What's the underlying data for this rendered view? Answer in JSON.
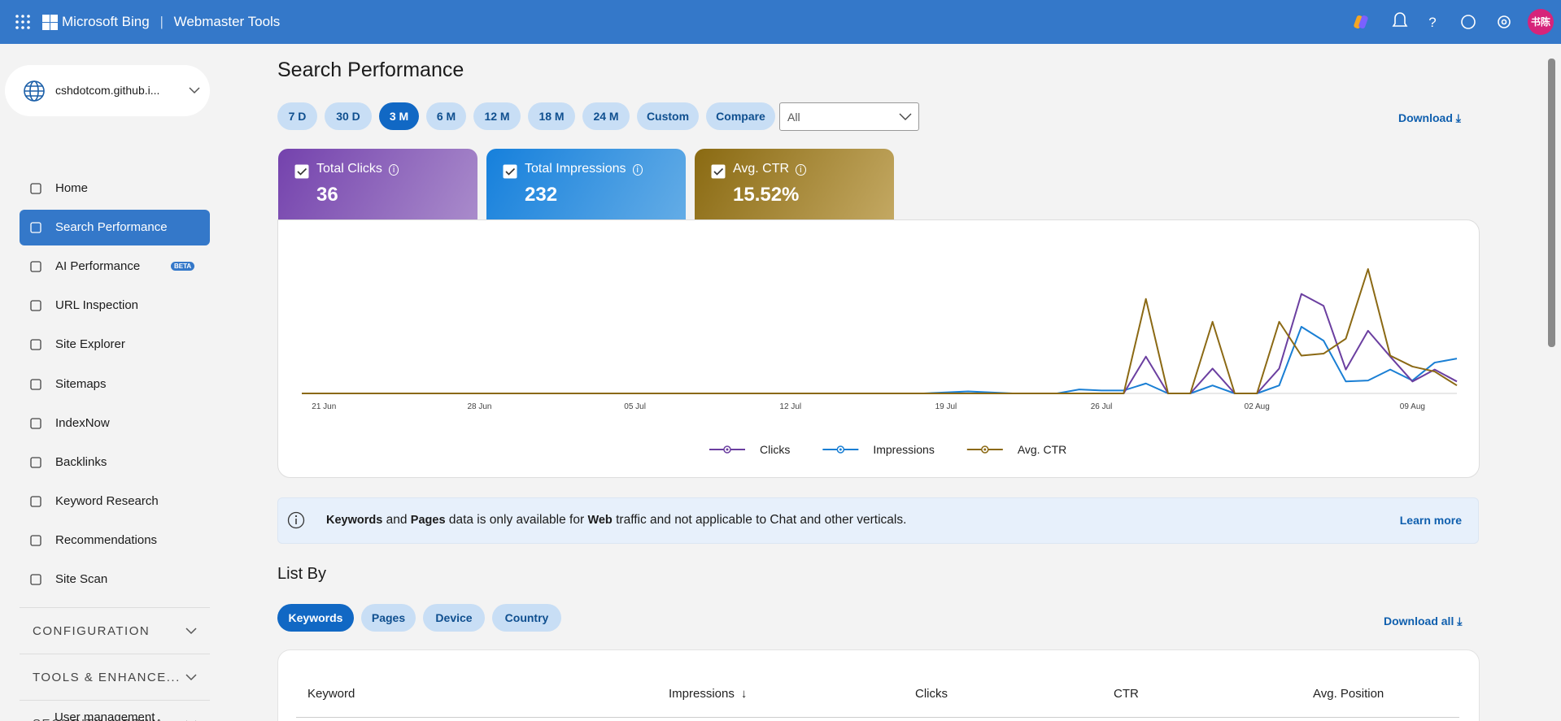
{
  "header": {
    "brand": "Microsoft Bing",
    "product": "Webmaster Tools",
    "avatar": "书陈"
  },
  "sidebar": {
    "site": "cshdotcom.github.i...",
    "nav": [
      {
        "label": "Home"
      },
      {
        "label": "Search Performance",
        "active": true
      },
      {
        "label": "AI Performance",
        "badge": "BETA"
      },
      {
        "label": "URL Inspection"
      },
      {
        "label": "Site Explorer"
      },
      {
        "label": "Sitemaps"
      },
      {
        "label": "IndexNow"
      },
      {
        "label": "Backlinks"
      },
      {
        "label": "Keyword Research"
      },
      {
        "label": "Recommendations"
      },
      {
        "label": "Site Scan"
      }
    ],
    "sections": [
      "CONFIGURATION",
      "TOOLS & ENHANCE...",
      "SECURITY & PRIVA..."
    ],
    "last_item": "User management"
  },
  "main": {
    "title": "Search Performance",
    "ranges": [
      {
        "label": "7 D"
      },
      {
        "label": "30 D"
      },
      {
        "label": "3 M",
        "active": true
      },
      {
        "label": "6 M"
      },
      {
        "label": "12 M"
      },
      {
        "label": "18 M"
      },
      {
        "label": "24 M"
      },
      {
        "label": "Custom"
      },
      {
        "label": "Compare"
      }
    ],
    "filter": "All",
    "download": "Download",
    "metrics": [
      {
        "label": "Total Clicks",
        "value": "36",
        "color": "purple"
      },
      {
        "label": "Total Impressions",
        "value": "232",
        "color": "blue"
      },
      {
        "label": "Avg. CTR",
        "value": "15.52%",
        "color": "gold"
      }
    ],
    "notice": {
      "parts": [
        {
          "text": "Keywords",
          "bold": true
        },
        {
          "text": " and "
        },
        {
          "text": "Pages",
          "bold": true
        },
        {
          "text": " data is only available for "
        },
        {
          "text": "Web",
          "bold": true
        },
        {
          "text": " traffic and not applicable to Chat and other verticals."
        }
      ],
      "link": "Learn more"
    },
    "list_by": {
      "title": "List By",
      "tabs": [
        {
          "label": "Keywords",
          "active": true
        },
        {
          "label": "Pages"
        },
        {
          "label": "Device"
        },
        {
          "label": "Country"
        }
      ],
      "download": "Download all",
      "columns": [
        "Keyword",
        "Impressions",
        "Clicks",
        "CTR",
        "Avg. Position"
      ]
    }
  },
  "chart_data": {
    "type": "line",
    "categories": [
      null,
      "21 Jun",
      null,
      null,
      null,
      null,
      null,
      null,
      "28 Jun",
      null,
      null,
      null,
      null,
      null,
      null,
      "05 Jul",
      null,
      null,
      null,
      null,
      null,
      null,
      "12 Jul",
      null,
      null,
      null,
      null,
      null,
      null,
      "19 Jul",
      null,
      null,
      null,
      null,
      null,
      null,
      "26 Jul",
      null,
      null,
      null,
      null,
      null,
      null,
      "02 Aug",
      null,
      null,
      null,
      null,
      null,
      null,
      "09 Aug",
      null,
      null
    ],
    "series": [
      {
        "name": "Clicks",
        "color": "#6b3fa0",
        "values": [
          0,
          0,
          0,
          0,
          0,
          0,
          0,
          0,
          0,
          0,
          0,
          0,
          0,
          0,
          0,
          0,
          0,
          0,
          0,
          0,
          0,
          0,
          0,
          0,
          0,
          0,
          0,
          0,
          0,
          0,
          0,
          0,
          0,
          0,
          0,
          0,
          0,
          0,
          37,
          0,
          0,
          25,
          0,
          0,
          25,
          100,
          88,
          24,
          63,
          37,
          12,
          24,
          12
        ]
      },
      {
        "name": "Impressions",
        "color": "#1a7fd4",
        "values": [
          0,
          0,
          0,
          0,
          0,
          0,
          0,
          0,
          0,
          0,
          0,
          0,
          0,
          0,
          0,
          0,
          0,
          0,
          0,
          0,
          0,
          0,
          0,
          0,
          0,
          0,
          0,
          0,
          0,
          1,
          2,
          1,
          0,
          0,
          0,
          4,
          3,
          3,
          10,
          0,
          0,
          8,
          0,
          0,
          8,
          67,
          53,
          12,
          13,
          24,
          13,
          31,
          35
        ]
      },
      {
        "name": "Avg. CTR",
        "color": "#8b6914",
        "values": [
          0,
          0,
          0,
          0,
          0,
          0,
          0,
          0,
          0,
          0,
          0,
          0,
          0,
          0,
          0,
          0,
          0,
          0,
          0,
          0,
          0,
          0,
          0,
          0,
          0,
          0,
          0,
          0,
          0,
          0,
          0,
          0,
          0,
          0,
          0,
          0,
          0,
          0,
          95,
          0,
          0,
          72,
          0,
          0,
          72,
          38,
          40,
          55,
          125,
          38,
          27,
          22,
          8
        ]
      }
    ]
  }
}
